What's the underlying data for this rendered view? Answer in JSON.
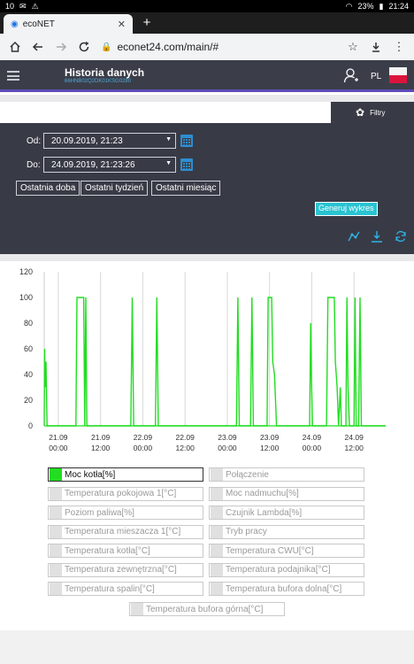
{
  "statusbar": {
    "time_left": "10",
    "battery": "23%",
    "clock": "21:24"
  },
  "browser": {
    "tab_title": "ecoNET",
    "url": "econet24.com/main/#"
  },
  "app": {
    "title": "Historia danych",
    "subtitle": "66HNB02Q2DK01KSG0280",
    "lang": "PL"
  },
  "filters": {
    "button_label": "Filtry",
    "from_label": "Od:",
    "from_value": "20.09.2019, 21:23",
    "to_label": "Do:",
    "to_value": "24.09.2019, 21:23:26",
    "quick": [
      "Ostatnia doba",
      "Ostatni tydzień",
      "Ostatni miesiąc"
    ],
    "generate_label": "Generuj wykres"
  },
  "chart_data": {
    "type": "line",
    "title": "",
    "xlabel": "",
    "ylabel": "",
    "ylim": [
      0,
      120
    ],
    "yticks": [
      0,
      20,
      40,
      60,
      80,
      100,
      120
    ],
    "xticks": [
      [
        "21.09",
        "00:00"
      ],
      [
        "21.09",
        "12:00"
      ],
      [
        "22.09",
        "00:00"
      ],
      [
        "22.09",
        "12:00"
      ],
      [
        "23.09",
        "00:00"
      ],
      [
        "23.09",
        "12:00"
      ],
      [
        "24.09",
        "00:00"
      ],
      [
        "24.09",
        "12:00"
      ]
    ],
    "x_unit": "hours since 21.09 00:00",
    "xlim": [
      -4,
      93
    ],
    "grid": "vertical",
    "series": [
      {
        "name": "Moc kotła[%]",
        "color": "#22dd22",
        "points": [
          [
            -4,
            0
          ],
          [
            -3.9,
            60
          ],
          [
            -3.7,
            30
          ],
          [
            -3.5,
            50
          ],
          [
            -3.2,
            0
          ],
          [
            5,
            0
          ],
          [
            5.3,
            100
          ],
          [
            7.2,
            100
          ],
          [
            7.5,
            0
          ],
          [
            7.8,
            100
          ],
          [
            8.1,
            0
          ],
          [
            20.6,
            0
          ],
          [
            21,
            100
          ],
          [
            21.4,
            0
          ],
          [
            27.6,
            0
          ],
          [
            28,
            100
          ],
          [
            28.4,
            0
          ],
          [
            50.6,
            0
          ],
          [
            51,
            100
          ],
          [
            51.4,
            0
          ],
          [
            54.6,
            0
          ],
          [
            55,
            100
          ],
          [
            55.4,
            0
          ],
          [
            59.3,
            0
          ],
          [
            59.6,
            100
          ],
          [
            60.6,
            100
          ],
          [
            60.9,
            50
          ],
          [
            61.4,
            40
          ],
          [
            62,
            0
          ],
          [
            71.4,
            0
          ],
          [
            71.7,
            80
          ],
          [
            71.9,
            40
          ],
          [
            72.2,
            0
          ],
          [
            76.2,
            0
          ],
          [
            76.6,
            100
          ],
          [
            78.4,
            100
          ],
          [
            78.7,
            50
          ],
          [
            79.2,
            30
          ],
          [
            79.6,
            0
          ],
          [
            80.1,
            30
          ],
          [
            80.4,
            0
          ],
          [
            81.7,
            0
          ],
          [
            82,
            100
          ],
          [
            82.3,
            30
          ],
          [
            82.7,
            0
          ],
          [
            84,
            0
          ],
          [
            84.3,
            100
          ],
          [
            84.6,
            0
          ],
          [
            85.3,
            0
          ],
          [
            85.7,
            100
          ],
          [
            86.1,
            0
          ],
          [
            93,
            0
          ]
        ]
      }
    ]
  },
  "legend": [
    {
      "label": "Moc kotła[%]",
      "active": true
    },
    {
      "label": "Połączenie",
      "active": false
    },
    {
      "label": "Temperatura pokojowa 1[°C]",
      "active": false
    },
    {
      "label": "Moc nadmuchu[%]",
      "active": false
    },
    {
      "label": "Poziom paliwa[%]",
      "active": false
    },
    {
      "label": "Czujnik Lambda[%]",
      "active": false
    },
    {
      "label": "Temperatura mieszacza 1[°C]",
      "active": false
    },
    {
      "label": "Tryb pracy",
      "active": false
    },
    {
      "label": "Temperatura kotła[°C]",
      "active": false
    },
    {
      "label": "Temperatura CWU[°C]",
      "active": false
    },
    {
      "label": "Temperatura zewnętrzna[°C]",
      "active": false
    },
    {
      "label": "Temperatura podajnika[°C]",
      "active": false
    },
    {
      "label": "Temperatura spalin[°C]",
      "active": false
    },
    {
      "label": "Temperatura bufora dolna[°C]",
      "active": false
    },
    {
      "label": "Temperatura bufora górna[°C]",
      "active": false
    }
  ]
}
